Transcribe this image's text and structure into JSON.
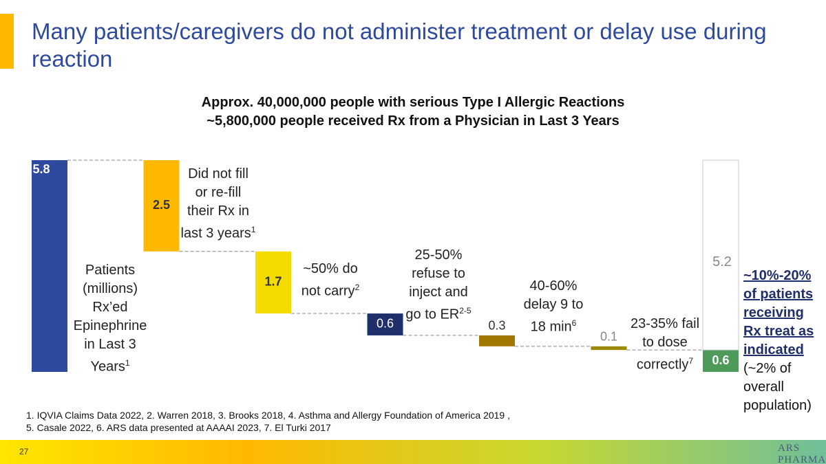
{
  "title": "Many patients/caregivers do not administer treatment or delay use during reaction",
  "subtitle": [
    "Approx. 40,000,000 people with serious Type I Allergic Reactions",
    "~5,800,000 people received Rx from a Physician in Last 3 Years"
  ],
  "chart_data": {
    "type": "waterfall",
    "categories": [
      "Patients (millions) Rx’ed Epinephrine in Last 3 Years",
      "Did not fill or re-fill their Rx in last 3 years",
      "~50% do not carry",
      "25-50% refuse to inject and go to ER",
      "40-60% delay 9 to 18 min",
      "23-35% fail to dose correctly",
      "~10%-20% of patients receiving Rx treat as indicated"
    ],
    "category_notes": [
      "1",
      "1",
      "2",
      "2-5",
      "6",
      "7",
      null
    ],
    "final_note": "(~2% of overall population)",
    "values": [
      5.8,
      2.5,
      1.7,
      0.6,
      0.3,
      0.1,
      0.6
    ],
    "gap_value": 5.2,
    "colors": [
      "#2E4A9E",
      "#FFB800",
      "#F5DC00",
      "#1F2F6B",
      "#A07800",
      "#9A8A00",
      "#4E9A5A"
    ]
  },
  "footnotes": [
    "1. IQVIA Claims Data 2022, 2. Warren 2018, 3. Brooks 2018, 4. Asthma and Allergy Foundation of America 2019 ,",
    "5. Casale 2022, 6. ARS data presented at AAAAI 2023, 7. El Turki 2017"
  ],
  "page_number": "27",
  "logo": "ARS PHARMA"
}
